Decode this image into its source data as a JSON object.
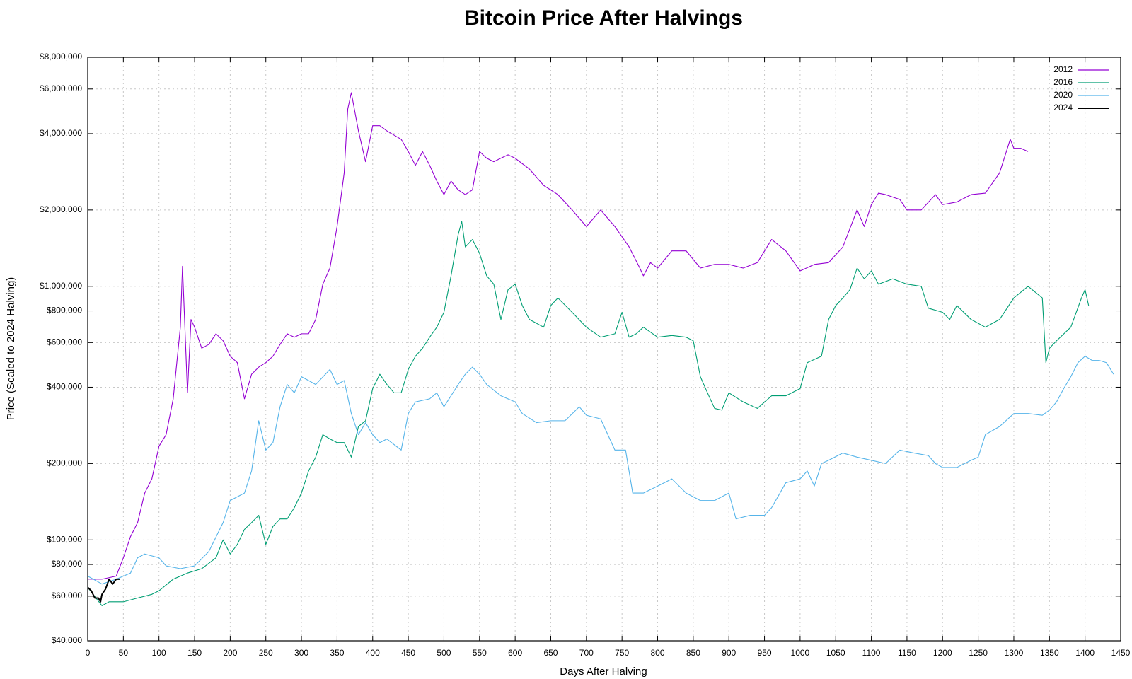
{
  "chart_data": {
    "type": "line",
    "title": "Bitcoin Price After Halvings",
    "xlabel": "Days After Halving",
    "ylabel": "Price (Scaled to 2024 Halving)",
    "xlim": [
      0,
      1450
    ],
    "xticks": [
      0,
      50,
      100,
      150,
      200,
      250,
      300,
      350,
      400,
      450,
      500,
      550,
      600,
      650,
      700,
      750,
      800,
      850,
      900,
      950,
      1000,
      1050,
      1100,
      1150,
      1200,
      1250,
      1300,
      1350,
      1400,
      1450
    ],
    "ylim": [
      40000,
      8000000
    ],
    "ylog": true,
    "yticks": [
      {
        "value": 40000,
        "label": "$40,000"
      },
      {
        "value": 60000,
        "label": "$60,000"
      },
      {
        "value": 80000,
        "label": "$80,000"
      },
      {
        "value": 100000,
        "label": "$100,000"
      },
      {
        "value": 200000,
        "label": "$200,000"
      },
      {
        "value": 400000,
        "label": "$400,000"
      },
      {
        "value": 600000,
        "label": "$600,000"
      },
      {
        "value": 800000,
        "label": "$800,000"
      },
      {
        "value": 1000000,
        "label": "$1,000,000"
      },
      {
        "value": 2000000,
        "label": "$2,000,000"
      },
      {
        "value": 4000000,
        "label": "$4,000,000"
      },
      {
        "value": 6000000,
        "label": "$6,000,000"
      },
      {
        "value": 8000000,
        "label": "$8,000,000"
      }
    ],
    "grid": true,
    "legend": "upper right",
    "series": [
      {
        "name": "2012",
        "color": "#9400d3",
        "x": [
          0,
          20,
          40,
          50,
          60,
          70,
          80,
          90,
          100,
          110,
          120,
          130,
          133,
          140,
          145,
          150,
          160,
          170,
          180,
          190,
          200,
          210,
          220,
          230,
          240,
          250,
          260,
          270,
          280,
          290,
          300,
          310,
          320,
          330,
          340,
          350,
          360,
          365,
          370,
          380,
          390,
          400,
          410,
          420,
          440,
          450,
          460,
          470,
          480,
          490,
          500,
          510,
          520,
          530,
          540,
          550,
          560,
          570,
          580,
          590,
          600,
          620,
          640,
          660,
          680,
          700,
          720,
          740,
          760,
          775,
          780,
          790,
          800,
          820,
          840,
          860,
          880,
          900,
          920,
          940,
          960,
          980,
          1000,
          1020,
          1040,
          1060,
          1080,
          1090,
          1100,
          1110,
          1120,
          1140,
          1150,
          1170,
          1190,
          1200,
          1220,
          1240,
          1260,
          1280,
          1295,
          1300,
          1310,
          1320
        ],
        "values": [
          70000,
          70000,
          72000,
          85000,
          103000,
          117000,
          153000,
          174000,
          234000,
          260000,
          360000,
          690000,
          1200000,
          380000,
          740000,
          690000,
          570000,
          590000,
          650000,
          610000,
          530000,
          500000,
          360000,
          450000,
          480000,
          500000,
          530000,
          590000,
          650000,
          630000,
          650000,
          650000,
          740000,
          1020000,
          1180000,
          1720000,
          2800000,
          5000000,
          5800000,
          4100000,
          3100000,
          4300000,
          4300000,
          4100000,
          3800000,
          3400000,
          3000000,
          3400000,
          3000000,
          2600000,
          2300000,
          2600000,
          2400000,
          2300000,
          2400000,
          3400000,
          3200000,
          3100000,
          3200000,
          3300000,
          3200000,
          2900000,
          2500000,
          2300000,
          2000000,
          1720000,
          2000000,
          1720000,
          1430000,
          1180000,
          1100000,
          1240000,
          1180000,
          1380000,
          1380000,
          1180000,
          1220000,
          1220000,
          1180000,
          1240000,
          1530000,
          1380000,
          1150000,
          1220000,
          1240000,
          1430000,
          2000000,
          1720000,
          2100000,
          2330000,
          2300000,
          2200000,
          2000000,
          2000000,
          2300000,
          2100000,
          2150000,
          2300000,
          2330000,
          2800000,
          3800000,
          3500000,
          3500000,
          3400000
        ]
      },
      {
        "name": "2016",
        "color": "#009e73",
        "x": [
          0,
          20,
          30,
          50,
          70,
          90,
          100,
          120,
          140,
          160,
          180,
          190,
          200,
          210,
          220,
          230,
          240,
          250,
          260,
          270,
          280,
          290,
          300,
          310,
          320,
          330,
          340,
          350,
          360,
          370,
          380,
          390,
          400,
          410,
          420,
          430,
          440,
          450,
          460,
          470,
          480,
          490,
          500,
          510,
          520,
          525,
          530,
          540,
          550,
          560,
          570,
          580,
          590,
          600,
          610,
          620,
          640,
          650,
          660,
          680,
          700,
          720,
          740,
          750,
          760,
          770,
          780,
          800,
          820,
          840,
          850,
          860,
          870,
          880,
          890,
          900,
          920,
          940,
          960,
          980,
          1000,
          1010,
          1030,
          1040,
          1050,
          1060,
          1070,
          1080,
          1090,
          1100,
          1110,
          1130,
          1150,
          1170,
          1180,
          1200,
          1210,
          1220,
          1240,
          1260,
          1280,
          1300,
          1320,
          1340,
          1345,
          1350,
          1360,
          1380,
          1395,
          1400,
          1405
        ],
        "values": [
          65000,
          55000,
          57000,
          57000,
          59000,
          61000,
          63000,
          70000,
          74000,
          77000,
          85000,
          100000,
          88000,
          96000,
          110000,
          117000,
          125000,
          96000,
          113000,
          121000,
          121000,
          134000,
          153000,
          187000,
          212000,
          260000,
          250000,
          242000,
          242000,
          212000,
          280000,
          295000,
          395000,
          450000,
          410000,
          380000,
          380000,
          470000,
          530000,
          570000,
          630000,
          690000,
          790000,
          1100000,
          1600000,
          1800000,
          1430000,
          1530000,
          1350000,
          1100000,
          1020000,
          740000,
          970000,
          1020000,
          840000,
          740000,
          690000,
          840000,
          900000,
          790000,
          690000,
          630000,
          650000,
          790000,
          630000,
          650000,
          690000,
          630000,
          640000,
          630000,
          610000,
          440000,
          380000,
          330000,
          325000,
          380000,
          350000,
          330000,
          370000,
          370000,
          395000,
          500000,
          530000,
          740000,
          840000,
          900000,
          970000,
          1180000,
          1070000,
          1150000,
          1020000,
          1070000,
          1020000,
          1000000,
          820000,
          790000,
          740000,
          840000,
          740000,
          690000,
          740000,
          900000,
          1000000,
          900000,
          500000,
          570000,
          610000,
          690000,
          900000,
          970000,
          840000
        ]
      },
      {
        "name": "2020",
        "color": "#56b4e9",
        "x": [
          0,
          20,
          40,
          60,
          70,
          80,
          100,
          110,
          130,
          150,
          170,
          190,
          200,
          220,
          230,
          240,
          250,
          260,
          270,
          280,
          290,
          300,
          310,
          320,
          340,
          350,
          360,
          370,
          380,
          390,
          400,
          410,
          420,
          440,
          450,
          460,
          480,
          490,
          500,
          510,
          520,
          530,
          540,
          550,
          560,
          580,
          600,
          610,
          630,
          650,
          670,
          690,
          700,
          720,
          740,
          755,
          765,
          780,
          800,
          820,
          840,
          860,
          880,
          900,
          910,
          930,
          950,
          960,
          980,
          1000,
          1010,
          1020,
          1030,
          1040,
          1060,
          1080,
          1100,
          1120,
          1140,
          1160,
          1180,
          1190,
          1200,
          1220,
          1240,
          1250,
          1260,
          1280,
          1300,
          1320,
          1340,
          1350,
          1360,
          1370,
          1380,
          1390,
          1400,
          1410,
          1420,
          1430,
          1440
        ],
        "values": [
          72000,
          67000,
          70000,
          74000,
          85000,
          88000,
          85000,
          79000,
          77000,
          79000,
          90000,
          117000,
          143000,
          153000,
          187000,
          295000,
          226000,
          242000,
          335000,
          410000,
          380000,
          440000,
          425000,
          410000,
          470000,
          410000,
          425000,
          315000,
          260000,
          290000,
          260000,
          242000,
          250000,
          226000,
          315000,
          350000,
          360000,
          380000,
          335000,
          370000,
          410000,
          450000,
          480000,
          450000,
          410000,
          370000,
          350000,
          315000,
          290000,
          295000,
          295000,
          335000,
          310000,
          300000,
          226000,
          226000,
          153000,
          153000,
          163000,
          174000,
          153000,
          143000,
          143000,
          153000,
          121000,
          125000,
          125000,
          134000,
          168000,
          174000,
          187000,
          163000,
          200000,
          206000,
          220000,
          212000,
          206000,
          200000,
          226000,
          220000,
          215000,
          200000,
          193000,
          193000,
          206000,
          212000,
          260000,
          280000,
          315000,
          315000,
          310000,
          325000,
          350000,
          395000,
          440000,
          500000,
          530000,
          510000,
          510000,
          500000,
          450000
        ]
      },
      {
        "name": "2024",
        "color": "#000000",
        "x": [
          0,
          5,
          10,
          15,
          18,
          20,
          25,
          30,
          35,
          40,
          45
        ],
        "values": [
          65000,
          63000,
          59000,
          59000,
          57000,
          61000,
          64000,
          70000,
          67000,
          70000,
          70000
        ]
      }
    ]
  }
}
